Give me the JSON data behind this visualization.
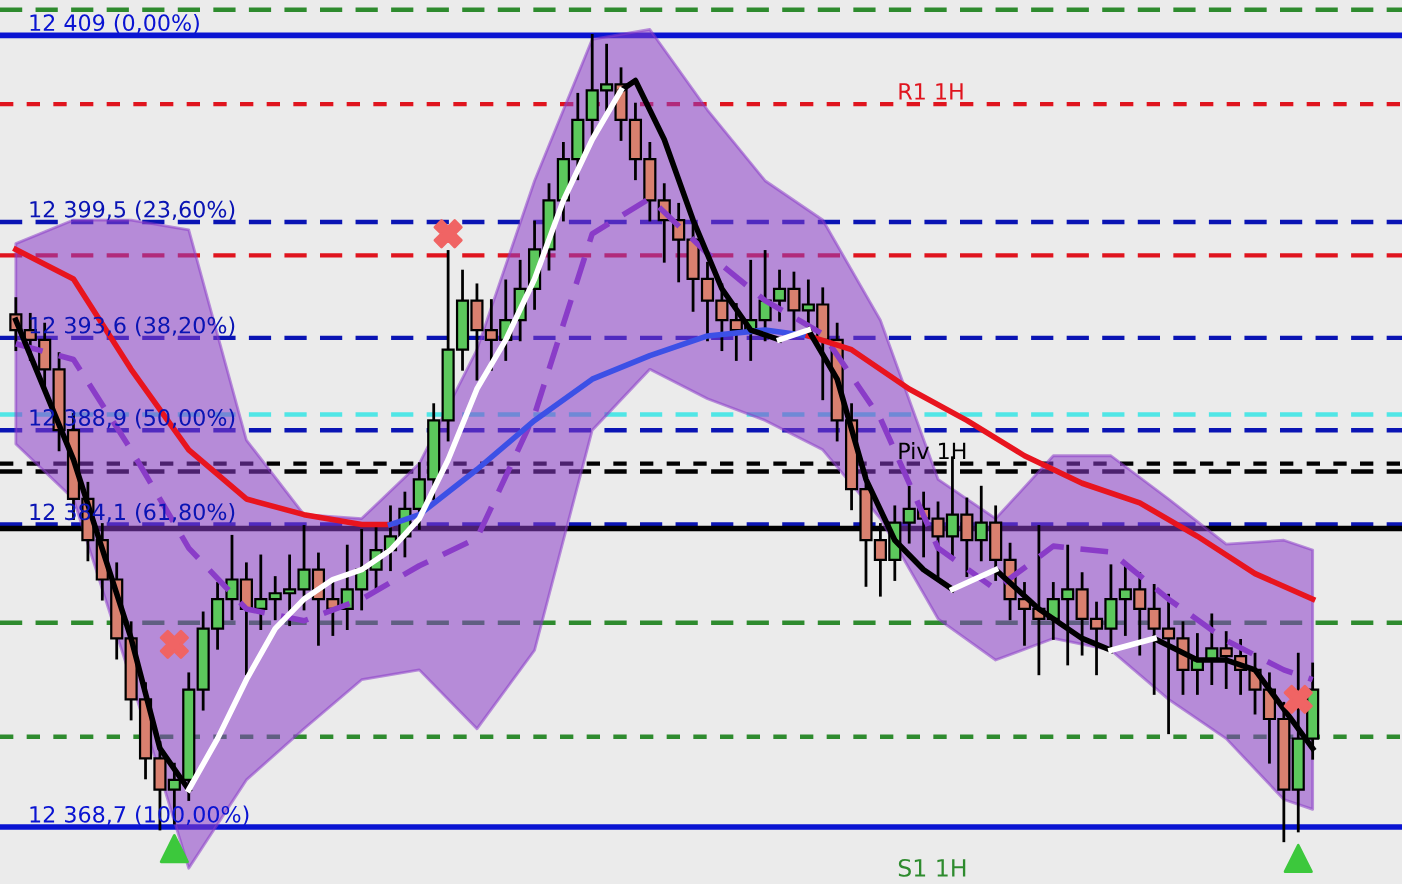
{
  "chart_data": {
    "type": "candlestick",
    "categories": [
      null,
      null,
      null,
      null,
      null,
      null,
      null,
      null,
      null,
      null,
      null,
      null,
      null,
      null,
      null,
      null,
      null,
      null,
      null,
      null,
      null,
      null,
      null,
      null,
      null,
      null,
      null,
      null,
      null,
      null,
      null,
      null,
      null,
      null,
      null,
      null,
      null,
      null,
      null,
      null,
      null,
      null,
      null,
      null,
      null,
      null,
      null,
      null,
      null,
      null,
      null,
      null,
      null,
      null,
      null,
      null,
      null,
      null,
      null,
      null,
      null,
      null,
      null,
      null,
      null,
      null,
      null,
      null,
      null,
      null,
      null,
      null,
      null,
      null,
      null,
      null,
      null,
      null,
      null,
      null,
      null,
      null,
      null,
      null,
      null,
      null,
      null,
      null,
      null,
      null,
      null
    ],
    "ohlc": [
      [
        12394.8,
        12395.6,
        12393.0,
        12394.0
      ],
      [
        12394.0,
        12394.8,
        12392.5,
        12393.5
      ],
      [
        12393.5,
        12394.3,
        12391.0,
        12392.0
      ],
      [
        12392.0,
        12392.8,
        12387.9,
        12388.9
      ],
      [
        12388.9,
        12389.7,
        12384.4,
        12385.4
      ],
      [
        12385.4,
        12386.2,
        12382.3,
        12383.3
      ],
      [
        12383.3,
        12384.1,
        12380.3,
        12381.3
      ],
      [
        12381.3,
        12382.1,
        12377.3,
        12378.3
      ],
      [
        12378.3,
        12379.1,
        12374.2,
        12375.2
      ],
      [
        12375.2,
        12376.0,
        12371.2,
        12372.2
      ],
      [
        12372.2,
        12373.0,
        12368.6,
        12370.6
      ],
      [
        12370.6,
        12371.9,
        12368.9,
        12371.1
      ],
      [
        12371.1,
        12376.5,
        12370.1,
        12375.7
      ],
      [
        12375.7,
        12379.6,
        12374.7,
        12378.8
      ],
      [
        12378.8,
        12381.1,
        12377.8,
        12380.3
      ],
      [
        12380.3,
        12383.5,
        12379.3,
        12381.3
      ],
      [
        12381.3,
        12382.1,
        12376.5,
        12379.8
      ],
      [
        12379.8,
        12382.5,
        12378.8,
        12380.3
      ],
      [
        12380.3,
        12381.4,
        12379.3,
        12380.6
      ],
      [
        12380.6,
        12382.5,
        12379.0,
        12380.8
      ],
      [
        12380.8,
        12384.0,
        12379.8,
        12381.8
      ],
      [
        12381.8,
        12382.6,
        12378.0,
        12380.3
      ],
      [
        12380.3,
        12381.1,
        12378.5,
        12379.8
      ],
      [
        12379.8,
        12383.0,
        12378.8,
        12380.8
      ],
      [
        12380.8,
        12383.8,
        12379.8,
        12381.8
      ],
      [
        12381.8,
        12384.0,
        12380.8,
        12382.8
      ],
      [
        12382.8,
        12385.0,
        12381.8,
        12383.5
      ],
      [
        12383.5,
        12385.7,
        12382.5,
        12384.9
      ],
      [
        12384.9,
        12387.2,
        12383.9,
        12386.4
      ],
      [
        12386.4,
        12390.2,
        12385.4,
        12389.4
      ],
      [
        12389.4,
        12398.0,
        12388.4,
        12393.0
      ],
      [
        12393.0,
        12397.0,
        12392.0,
        12395.5
      ],
      [
        12395.5,
        12396.3,
        12391.5,
        12394.0
      ],
      [
        12394.0,
        12395.5,
        12392.0,
        12393.5
      ],
      [
        12393.5,
        12396.5,
        12392.5,
        12394.5
      ],
      [
        12394.5,
        12397.5,
        12393.5,
        12396.1
      ],
      [
        12396.1,
        12399.5,
        12395.1,
        12398.1
      ],
      [
        12398.1,
        12401.4,
        12397.1,
        12400.6
      ],
      [
        12400.6,
        12403.5,
        12399.6,
        12402.7
      ],
      [
        12402.7,
        12406.0,
        12401.7,
        12404.7
      ],
      [
        12404.7,
        12409.0,
        12403.7,
        12406.2
      ],
      [
        12406.2,
        12408.5,
        12405.2,
        12406.5
      ],
      [
        12406.5,
        12407.3,
        12403.7,
        12404.7
      ],
      [
        12404.7,
        12405.5,
        12401.7,
        12402.7
      ],
      [
        12402.7,
        12403.5,
        12399.6,
        12400.6
      ],
      [
        12400.6,
        12401.4,
        12397.5,
        12399.6
      ],
      [
        12399.6,
        12400.4,
        12396.5,
        12398.6
      ],
      [
        12398.6,
        12399.4,
        12395.0,
        12396.6
      ],
      [
        12396.6,
        12397.4,
        12393.5,
        12395.5
      ],
      [
        12395.5,
        12396.3,
        12393.0,
        12394.5
      ],
      [
        12394.5,
        12395.3,
        12392.5,
        12394.0
      ],
      [
        12394.0,
        12397.5,
        12392.5,
        12394.5
      ],
      [
        12394.5,
        12398.0,
        12393.5,
        12395.5
      ],
      [
        12395.5,
        12397.0,
        12394.5,
        12396.1
      ],
      [
        12396.1,
        12396.9,
        12394.0,
        12395.0
      ],
      [
        12395.0,
        12396.5,
        12393.8,
        12395.3
      ],
      [
        12395.3,
        12396.1,
        12390.5,
        12393.5
      ],
      [
        12393.5,
        12394.3,
        12388.4,
        12389.4
      ],
      [
        12389.4,
        12390.2,
        12384.9,
        12385.9
      ],
      [
        12385.9,
        12386.7,
        12381.0,
        12383.3
      ],
      [
        12383.3,
        12384.1,
        12380.5,
        12382.3
      ],
      [
        12382.3,
        12385.0,
        12381.3,
        12384.2
      ],
      [
        12384.2,
        12386.0,
        12383.2,
        12384.9
      ],
      [
        12384.9,
        12385.7,
        12382.5,
        12384.4
      ],
      [
        12384.4,
        12385.2,
        12381.5,
        12383.5
      ],
      [
        12383.5,
        12387.5,
        12382.5,
        12384.6
      ],
      [
        12384.6,
        12385.4,
        12381.5,
        12383.3
      ],
      [
        12383.3,
        12386.0,
        12382.3,
        12384.2
      ],
      [
        12384.2,
        12385.0,
        12381.3,
        12382.3
      ],
      [
        12382.3,
        12383.1,
        12379.3,
        12380.3
      ],
      [
        12380.3,
        12381.1,
        12378.0,
        12379.8
      ],
      [
        12379.8,
        12384.0,
        12376.5,
        12379.3
      ],
      [
        12379.3,
        12381.1,
        12378.3,
        12380.3
      ],
      [
        12380.3,
        12383.0,
        12377.0,
        12380.8
      ],
      [
        12380.8,
        12381.6,
        12377.5,
        12379.3
      ],
      [
        12379.3,
        12380.1,
        12376.5,
        12378.8
      ],
      [
        12378.8,
        12382.0,
        12377.8,
        12380.3
      ],
      [
        12380.3,
        12382.0,
        12378.5,
        12380.8
      ],
      [
        12380.8,
        12381.6,
        12377.5,
        12379.8
      ],
      [
        12379.8,
        12381.0,
        12375.5,
        12378.8
      ],
      [
        12378.8,
        12380.5,
        12373.5,
        12378.3
      ],
      [
        12378.3,
        12379.1,
        12375.5,
        12376.7
      ],
      [
        12376.7,
        12378.5,
        12375.5,
        12377.2
      ],
      [
        12377.2,
        12379.5,
        12376.0,
        12377.8
      ],
      [
        12377.8,
        12378.6,
        12375.8,
        12377.4
      ],
      [
        12377.4,
        12378.2,
        12375.5,
        12376.7
      ],
      [
        12376.7,
        12377.5,
        12374.5,
        12375.7
      ],
      [
        12375.7,
        12376.5,
        12372.0,
        12374.2
      ],
      [
        12374.2,
        12375.0,
        12368.0,
        12370.6
      ],
      [
        12370.6,
        12377.5,
        12368.5,
        12373.2
      ],
      [
        12373.2,
        12377.0,
        12372.2,
        12375.7
      ]
    ],
    "colors": [
      "#d9806f",
      "#d9806f",
      "#d9806f",
      "#d9806f",
      "#d9806f",
      "#d9806f",
      "#d9806f",
      "#d9806f",
      "#d9806f",
      "#d9806f",
      "#d9806f",
      "#5cc85c",
      "#5cc85c",
      "#5cc85c",
      "#5cc85c",
      "#5cc85c",
      "#d9806f",
      "#5cc85c",
      "#5cc85c",
      "#5cc85c",
      "#5cc85c",
      "#d9806f",
      "#d9806f",
      "#5cc85c",
      "#5cc85c",
      "#5cc85c",
      "#5cc85c",
      "#5cc85c",
      "#5cc85c",
      "#5cc85c",
      "#5cc85c",
      "#5cc85c",
      "#d9806f",
      "#d9806f",
      "#5cc85c",
      "#5cc85c",
      "#5cc85c",
      "#5cc85c",
      "#5cc85c",
      "#5cc85c",
      "#5cc85c",
      "#5cc85c",
      "#d9806f",
      "#d9806f",
      "#d9806f",
      "#d9806f",
      "#d9806f",
      "#d9806f",
      "#d9806f",
      "#d9806f",
      "#d9806f",
      "#5cc85c",
      "#5cc85c",
      "#5cc85c",
      "#d9806f",
      "#5cc85c",
      "#d9806f",
      "#d9806f",
      "#d9806f",
      "#d9806f",
      "#d9806f",
      "#5cc85c",
      "#5cc85c",
      "#d9806f",
      "#d9806f",
      "#5cc85c",
      "#d9806f",
      "#5cc85c",
      "#d9806f",
      "#d9806f",
      "#d9806f",
      "#d9806f",
      "#5cc85c",
      "#5cc85c",
      "#d9806f",
      "#d9806f",
      "#5cc85c",
      "#5cc85c",
      "#d9806f",
      "#d9806f",
      "#d9806f",
      "#d9806f",
      "#5cc85c",
      "#5cc85c",
      "#d9806f",
      "#d9806f",
      "#d9806f",
      "#d9806f",
      "#d9806f",
      "#5cc85c",
      "#5cc85c"
    ],
    "series": [
      {
        "type": "line",
        "color": "#8a3cc8",
        "line_style": "dashed",
        "values": [
          12393.3,
          null,
          null,
          null,
          12392.5,
          null,
          null,
          null,
          12387.9,
          null,
          null,
          null,
          12382.9,
          null,
          null,
          null,
          12379.8,
          null,
          null,
          null,
          12379.2,
          null,
          null,
          null,
          12380.3,
          null,
          null,
          null,
          12382.0,
          null,
          null,
          null,
          12383.4,
          null,
          null,
          null,
          12389.7,
          null,
          null,
          null,
          12398.9,
          null,
          null,
          null,
          12400.7,
          null,
          null,
          null,
          12397.9,
          null,
          null,
          null,
          12395.5,
          null,
          null,
          null,
          12393.8,
          null,
          null,
          null,
          12389.5,
          null,
          null,
          null,
          12382.9,
          null,
          null,
          null,
          12380.8,
          null,
          null,
          null,
          12383.0,
          null,
          null,
          null,
          12382.7,
          null,
          null,
          null,
          12380.3,
          null,
          null,
          null,
          12378.2,
          null,
          null,
          null,
          12376.7,
          null,
          12376.2
        ],
        "lower": [
          12388.2,
          null,
          null,
          null,
          12385.4,
          null,
          null,
          null,
          12376.2,
          null,
          null,
          null,
          12366.6,
          null,
          null,
          null,
          12371.1,
          null,
          null,
          null,
          12373.7,
          null,
          null,
          null,
          12376.2,
          null,
          null,
          null,
          12376.7,
          null,
          null,
          null,
          12373.7,
          null,
          null,
          null,
          12377.7,
          null,
          null,
          null,
          12388.9,
          null,
          null,
          null,
          12392.0,
          null,
          null,
          null,
          12390.5,
          null,
          null,
          null,
          12389.4,
          null,
          null,
          null,
          12387.9,
          null,
          null,
          null,
          12384.4,
          null,
          null,
          null,
          12379.3,
          null,
          null,
          null,
          12377.2,
          null,
          null,
          null,
          12378.3,
          null,
          null,
          null,
          12377.7,
          null,
          null,
          null,
          12375.2,
          null,
          null,
          null,
          12373.2,
          null,
          null,
          null,
          12370.1,
          null,
          12369.6
        ],
        "upper": [
          12398.4,
          null,
          null,
          null,
          12399.6,
          null,
          null,
          null,
          12399.6,
          null,
          null,
          null,
          12399.1,
          null,
          null,
          null,
          12388.4,
          null,
          null,
          null,
          12384.6,
          null,
          null,
          null,
          12384.4,
          null,
          null,
          null,
          12387.2,
          null,
          null,
          null,
          12393.0,
          null,
          null,
          null,
          12401.6,
          null,
          null,
          null,
          12408.8,
          null,
          null,
          null,
          12409.3,
          null,
          null,
          null,
          12405.2,
          null,
          null,
          null,
          12401.6,
          null,
          null,
          null,
          12399.6,
          null,
          null,
          null,
          12394.5,
          null,
          null,
          null,
          12386.4,
          null,
          null,
          null,
          12384.4,
          null,
          null,
          null,
          12387.6,
          null,
          null,
          null,
          12387.6,
          null,
          null,
          null,
          12385.4,
          null,
          null,
          null,
          12383.1,
          null,
          null,
          null,
          12383.3,
          null,
          12382.8
        ]
      },
      {
        "type": "line",
        "color": "#e8141e",
        "line_style": "solid",
        "values": [
          12398.1,
          null,
          null,
          null,
          12396.6,
          null,
          null,
          null,
          12392.0,
          null,
          null,
          null,
          12387.9,
          null,
          null,
          null,
          12385.4,
          null,
          null,
          null,
          12384.6,
          null,
          null,
          null,
          12384.1,
          null,
          12384.1,
          null,
          null,
          null,
          null,
          null,
          null,
          null,
          null,
          null,
          null,
          null,
          null,
          null,
          null,
          null,
          null,
          null,
          null,
          null,
          null,
          null,
          null,
          null,
          null,
          null,
          null,
          null,
          null,
          null,
          null,
          null,
          null,
          null,
          null,
          null,
          null,
          null,
          null,
          null,
          null,
          null,
          null,
          null,
          null,
          null,
          null,
          null,
          null,
          null,
          null,
          null,
          null,
          null,
          null,
          null,
          null,
          null,
          null,
          null,
          null,
          null,
          null,
          null,
          null
        ]
      },
      {
        "type": "line",
        "color": "#3c50e6",
        "line_style": "solid",
        "values": [
          null,
          null,
          null,
          null,
          null,
          null,
          null,
          null,
          null,
          null,
          null,
          null,
          null,
          null,
          null,
          null,
          null,
          null,
          null,
          null,
          null,
          null,
          null,
          null,
          null,
          null,
          12384.1,
          null,
          12384.6,
          null,
          null,
          null,
          12386.9,
          null,
          null,
          null,
          12389.4,
          null,
          null,
          null,
          12391.5,
          null,
          null,
          null,
          12392.7,
          null,
          null,
          null,
          12393.7,
          null,
          null,
          null,
          12394.0,
          null,
          null,
          12393.7,
          null,
          null,
          null,
          null,
          null,
          null,
          null,
          null,
          null,
          null,
          null,
          null,
          null,
          null,
          null,
          null,
          null,
          null,
          null,
          null,
          null,
          null,
          null,
          null,
          null,
          null,
          null,
          null,
          null,
          null,
          null,
          null,
          null,
          null,
          null
        ]
      },
      {
        "type": "line",
        "color": "#e8141e",
        "line_style": "solid",
        "values": [
          null,
          null,
          null,
          null,
          null,
          null,
          null,
          null,
          null,
          null,
          null,
          null,
          null,
          null,
          null,
          null,
          null,
          null,
          null,
          null,
          null,
          null,
          null,
          null,
          null,
          null,
          null,
          null,
          null,
          null,
          null,
          null,
          null,
          null,
          null,
          null,
          null,
          null,
          null,
          null,
          null,
          null,
          null,
          null,
          null,
          null,
          null,
          null,
          null,
          null,
          null,
          null,
          null,
          null,
          null,
          12393.7,
          null,
          null,
          12393.0,
          null,
          null,
          null,
          12391.0,
          null,
          null,
          null,
          12389.4,
          null,
          null,
          null,
          12387.6,
          null,
          null,
          null,
          12386.2,
          null,
          null,
          null,
          12385.2,
          null,
          null,
          null,
          12383.5,
          null,
          null,
          null,
          12381.6,
          null,
          null,
          null,
          12380.3
        ]
      },
      {
        "type": "line",
        "color": "#000000",
        "line_style": "solid",
        "values": [
          12394.5,
          null,
          null,
          null,
          12387.4,
          null,
          null,
          null,
          12378.3,
          null,
          12372.7,
          null,
          12370.6,
          null,
          null,
          null,
          null,
          null,
          null,
          null,
          null,
          null,
          null,
          null,
          null,
          null,
          null,
          null,
          null,
          null,
          null,
          null,
          null,
          null,
          null,
          null,
          null,
          null,
          null,
          null,
          null,
          null,
          null,
          null,
          null,
          null,
          null,
          null,
          null,
          null,
          null,
          null,
          null,
          null,
          null,
          null,
          null,
          null,
          null,
          null,
          null,
          null,
          null,
          null,
          null,
          null,
          null,
          null,
          null,
          null,
          null,
          null,
          null,
          null,
          null,
          null,
          null,
          null,
          null,
          null,
          null,
          null,
          null,
          null,
          null,
          null,
          null,
          null,
          null,
          null,
          null
        ]
      },
      {
        "type": "line",
        "color": "#000000",
        "line_style": "solid",
        "values": [
          null,
          null,
          null,
          null,
          null,
          null,
          null,
          null,
          null,
          null,
          null,
          null,
          null,
          null,
          null,
          null,
          null,
          null,
          null,
          null,
          null,
          null,
          null,
          null,
          null,
          null,
          null,
          null,
          null,
          null,
          null,
          null,
          null,
          null,
          null,
          null,
          null,
          null,
          null,
          null,
          null,
          null,
          12406.2,
          12406.7,
          null,
          12403.7,
          null,
          12399.6,
          null,
          12396.1,
          null,
          12394.0,
          null,
          12393.5,
          null,
          null,
          null,
          null,
          null,
          null,
          null,
          null,
          null,
          null,
          null,
          null,
          null,
          null,
          null,
          null,
          null,
          null,
          null,
          null,
          null,
          null,
          null,
          null,
          null,
          null,
          null,
          null,
          null,
          null,
          null,
          null,
          null,
          null,
          null,
          null,
          null
        ]
      },
      {
        "type": "line",
        "color": "#000000",
        "line_style": "solid",
        "values": [
          null,
          null,
          null,
          null,
          null,
          null,
          null,
          null,
          null,
          null,
          null,
          null,
          null,
          null,
          null,
          null,
          null,
          null,
          null,
          null,
          null,
          null,
          null,
          null,
          null,
          null,
          null,
          null,
          null,
          null,
          null,
          null,
          null,
          null,
          null,
          null,
          null,
          null,
          null,
          null,
          null,
          null,
          null,
          null,
          null,
          null,
          null,
          null,
          null,
          null,
          null,
          null,
          null,
          null,
          null,
          12394.0,
          null,
          12391.5,
          null,
          12386.4,
          null,
          12383.3,
          null,
          12381.8,
          null,
          12380.8,
          null,
          null,
          null,
          null,
          null,
          null,
          null,
          null,
          null,
          null,
          null,
          null,
          null,
          null,
          null,
          null,
          null,
          null,
          null,
          null,
          null,
          null,
          null,
          null,
          null
        ]
      },
      {
        "type": "line",
        "color": "#000000",
        "line_style": "solid",
        "values": [
          null,
          null,
          null,
          null,
          null,
          null,
          null,
          null,
          null,
          null,
          null,
          null,
          null,
          null,
          null,
          null,
          null,
          null,
          null,
          null,
          null,
          null,
          null,
          null,
          null,
          null,
          null,
          null,
          null,
          null,
          null,
          null,
          null,
          null,
          null,
          null,
          null,
          null,
          null,
          null,
          null,
          null,
          null,
          null,
          null,
          null,
          null,
          null,
          null,
          null,
          null,
          null,
          null,
          null,
          null,
          null,
          null,
          null,
          null,
          null,
          null,
          null,
          null,
          null,
          null,
          null,
          null,
          null,
          12381.8,
          null,
          null,
          12379.8,
          null,
          null,
          12378.3,
          null,
          12377.7,
          null,
          null,
          null,
          null,
          null,
          null,
          null,
          null,
          null,
          null,
          null,
          null,
          null,
          null
        ]
      },
      {
        "type": "line",
        "color": "#000000",
        "line_style": "solid",
        "values": [
          null,
          null,
          null,
          null,
          null,
          null,
          null,
          null,
          null,
          null,
          null,
          null,
          null,
          null,
          null,
          null,
          null,
          null,
          null,
          null,
          null,
          null,
          null,
          null,
          null,
          null,
          null,
          null,
          null,
          null,
          null,
          null,
          null,
          null,
          null,
          null,
          null,
          null,
          null,
          null,
          null,
          null,
          null,
          null,
          null,
          null,
          null,
          null,
          null,
          null,
          null,
          null,
          null,
          null,
          null,
          null,
          null,
          null,
          null,
          null,
          null,
          null,
          null,
          null,
          null,
          null,
          null,
          null,
          null,
          null,
          null,
          null,
          null,
          null,
          null,
          null,
          null,
          null,
          null,
          12378.3,
          null,
          null,
          12377.2,
          null,
          12377.2,
          null,
          12376.7,
          null,
          12374.7,
          null,
          12372.7
        ]
      },
      {
        "type": "line",
        "color": "#ffffff",
        "line_style": "solid",
        "values": [
          null,
          null,
          null,
          null,
          null,
          null,
          null,
          null,
          null,
          null,
          null,
          null,
          12370.6,
          null,
          12373.2,
          null,
          12376.2,
          null,
          12378.8,
          null,
          12380.3,
          null,
          12381.3,
          null,
          12381.8,
          null,
          12382.8,
          null,
          12384.4,
          null,
          12387.4,
          null,
          12391.0,
          null,
          12393.5,
          null,
          12396.6,
          null,
          12400.6,
          null,
          12403.7,
          null,
          12406.2,
          null,
          null,
          null,
          null,
          null,
          null,
          null,
          null,
          null,
          null,
          null,
          null,
          null,
          null,
          null,
          null,
          null,
          null,
          null,
          null,
          null,
          null,
          null,
          null,
          null,
          null,
          null,
          null,
          null,
          null,
          null,
          null,
          null,
          null,
          null,
          null,
          null,
          null,
          null,
          null,
          null,
          null,
          null,
          null,
          null,
          null,
          null,
          null
        ]
      },
      {
        "type": "line",
        "color": "#ffffff",
        "line_style": "solid",
        "values": [
          null,
          null,
          null,
          null,
          null,
          null,
          null,
          null,
          null,
          null,
          null,
          null,
          null,
          null,
          null,
          null,
          null,
          null,
          null,
          null,
          null,
          null,
          null,
          null,
          null,
          null,
          null,
          null,
          null,
          null,
          null,
          null,
          null,
          null,
          null,
          null,
          null,
          null,
          null,
          null,
          null,
          null,
          null,
          null,
          null,
          null,
          null,
          null,
          null,
          null,
          null,
          null,
          null,
          12393.5,
          null,
          12394.0,
          null,
          null,
          null,
          null,
          null,
          null,
          null,
          null,
          null,
          null,
          null,
          null,
          null,
          null,
          null,
          null,
          null,
          null,
          null,
          null,
          null,
          null,
          null,
          null,
          null,
          null,
          null,
          null,
          null,
          null,
          null,
          null,
          null,
          null,
          null
        ]
      },
      {
        "type": "line",
        "color": "#ffffff",
        "line_style": "solid",
        "values": [
          null,
          null,
          null,
          null,
          null,
          null,
          null,
          null,
          null,
          null,
          null,
          null,
          null,
          null,
          null,
          null,
          null,
          null,
          null,
          null,
          null,
          null,
          null,
          null,
          null,
          null,
          null,
          null,
          null,
          null,
          null,
          null,
          null,
          null,
          null,
          null,
          null,
          null,
          null,
          null,
          null,
          null,
          null,
          null,
          null,
          null,
          null,
          null,
          null,
          null,
          null,
          null,
          null,
          null,
          null,
          null,
          null,
          null,
          null,
          null,
          null,
          null,
          null,
          null,
          null,
          12380.8,
          null,
          null,
          12381.8,
          null,
          null,
          null,
          null,
          null,
          null,
          null,
          null,
          null,
          null,
          null,
          null,
          null,
          null,
          null,
          null,
          null,
          null,
          null,
          null,
          null,
          null
        ]
      },
      {
        "type": "line",
        "color": "#ffffff",
        "line_style": "solid",
        "values": [
          null,
          null,
          null,
          null,
          null,
          null,
          null,
          null,
          null,
          null,
          null,
          null,
          null,
          null,
          null,
          null,
          null,
          null,
          null,
          null,
          null,
          null,
          null,
          null,
          null,
          null,
          null,
          null,
          null,
          null,
          null,
          null,
          null,
          null,
          null,
          null,
          null,
          null,
          null,
          null,
          null,
          null,
          null,
          null,
          null,
          null,
          null,
          null,
          null,
          null,
          null,
          null,
          null,
          null,
          null,
          null,
          null,
          null,
          null,
          null,
          null,
          null,
          null,
          null,
          null,
          null,
          null,
          null,
          null,
          null,
          null,
          null,
          null,
          null,
          null,
          null,
          12377.7,
          null,
          null,
          12378.3,
          null,
          null,
          null,
          null,
          null,
          null,
          null,
          null,
          null,
          null,
          null
        ]
      },
      {
        "type": "scatter",
        "color": "#f06464",
        "marker": "cross",
        "values": [
          null,
          null,
          null,
          null,
          null,
          null,
          null,
          null,
          null,
          null,
          null,
          12378.0,
          null,
          null,
          null,
          null,
          null,
          null,
          null,
          null,
          null,
          null,
          null,
          null,
          null,
          null,
          null,
          null,
          null,
          null,
          12398.9,
          null,
          null,
          null,
          null,
          null,
          null,
          null,
          null,
          null,
          null,
          null,
          null,
          null,
          null,
          null,
          null,
          null,
          null,
          null,
          null,
          null,
          null,
          null,
          null,
          null,
          null,
          null,
          null,
          null,
          null,
          null,
          null,
          null,
          null,
          null,
          null,
          null,
          null,
          null,
          null,
          null,
          null,
          null,
          null,
          null,
          null,
          null,
          null,
          null,
          null,
          null,
          null,
          null,
          null,
          null,
          null,
          null,
          null,
          12375.2,
          null
        ]
      },
      {
        "type": "scatter",
        "color": "#3cc83c",
        "marker": "triangle",
        "values": [
          null,
          null,
          null,
          null,
          null,
          null,
          null,
          null,
          null,
          null,
          null,
          12367.6,
          null,
          null,
          null,
          null,
          null,
          null,
          null,
          null,
          null,
          null,
          null,
          null,
          null,
          null,
          null,
          null,
          null,
          null,
          null,
          null,
          null,
          null,
          null,
          null,
          null,
          null,
          null,
          null,
          null,
          null,
          null,
          null,
          null,
          null,
          null,
          null,
          null,
          null,
          null,
          null,
          null,
          null,
          null,
          null,
          null,
          null,
          null,
          null,
          null,
          null,
          null,
          null,
          null,
          null,
          null,
          null,
          null,
          null,
          null,
          null,
          null,
          null,
          null,
          null,
          null,
          null,
          null,
          null,
          null,
          null,
          null,
          null,
          null,
          null,
          null,
          null,
          null,
          12367.1,
          null
        ]
      }
    ],
    "ylim": [
      12365.8,
      12410.8
    ],
    "ref_lines": [
      {
        "axis": "y",
        "value": 12410.3,
        "color": "#2e8b2e",
        "line_style": "dashed"
      },
      {
        "axis": "y",
        "value": 12409,
        "label": "12 409 (0,00%)",
        "color": "#0a14d2",
        "line_style": "solid"
      },
      {
        "axis": "y",
        "value": 12405.5,
        "label": "R1 1H",
        "color": "#e0141e",
        "line_style": "dotted"
      },
      {
        "axis": "y",
        "value": 12399.5,
        "label": "12 399,5 (23,60%)",
        "color": "#0a14b4",
        "line_style": "dashed"
      },
      {
        "axis": "y",
        "value": 12397.8,
        "color": "#e0141e",
        "line_style": "dashed"
      },
      {
        "axis": "y",
        "value": 12393.6,
        "label": "12 393,6 (38,20%)",
        "color": "#0a14b4",
        "line_style": "dashed"
      },
      {
        "axis": "y",
        "value": 12389.7,
        "color": "#50e6e6",
        "line_style": "dashed"
      },
      {
        "axis": "y",
        "value": 12388.9,
        "label": "12 388,9 (50,00%)",
        "color": "#0a14b4",
        "line_style": "dashed"
      },
      {
        "axis": "y",
        "value": 12387.2,
        "label": "Piv 1H",
        "color": "#000000",
        "line_style": "dotted"
      },
      {
        "axis": "y",
        "value": 12386.8,
        "color": "#000000",
        "line_style": "dashed"
      },
      {
        "axis": "y",
        "value": 12384.1,
        "label": "12 384,1 (61,80%)",
        "color": "#0a14b4",
        "line_style": "dashed"
      },
      {
        "axis": "y",
        "value": 12383.9,
        "color": "#000000",
        "line_style": "solid"
      },
      {
        "axis": "y",
        "value": 12379.1,
        "color": "#2e8b2e",
        "line_style": "dashed"
      },
      {
        "axis": "y",
        "value": 12373.3,
        "color": "#2e8b2e",
        "line_style": "dotted"
      },
      {
        "axis": "y",
        "value": 12368.7,
        "label": "12 368,7 (100,00%)",
        "color": "#0a14d2",
        "line_style": "solid"
      }
    ],
    "annotations": [
      "S1 1H"
    ]
  }
}
